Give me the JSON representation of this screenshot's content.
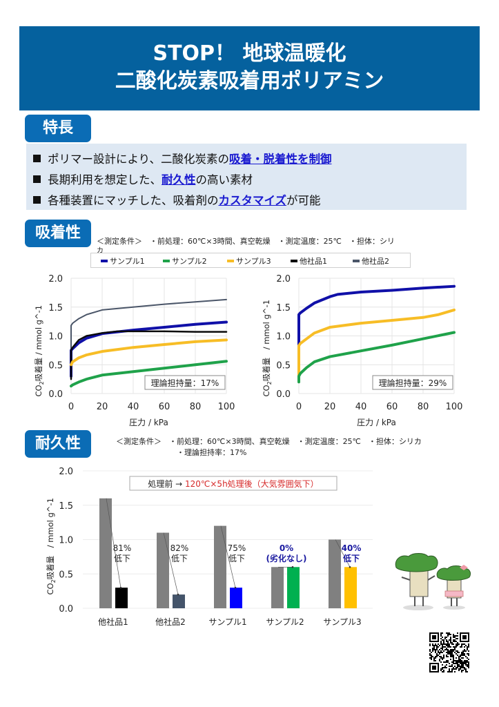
{
  "header": {
    "line1": "STOP！ 地球温暖化",
    "line2": "二酸化炭素吸着用ポリアミン"
  },
  "features": {
    "heading": "特長",
    "items": [
      {
        "before": "ポリマー設計により、二酸化炭素の",
        "highlight": "吸着・脱着性を制御",
        "after": ""
      },
      {
        "before": "長期利用を想定した、",
        "highlight": "耐久性",
        "after": "の高い素材"
      },
      {
        "before": "各種装置にマッチした、吸着剤の",
        "highlight": "カスタマイズ",
        "after": "が可能"
      }
    ]
  },
  "adsorption": {
    "heading": "吸着性",
    "conditions_line1": "＜測定条件＞　・前処理：60℃×3時間、真空乾燥　・測定温度：25℃　・担体：シリ",
    "conditions_line2": "カ",
    "legend": [
      {
        "label": "サンプル1",
        "color": "#1010a8"
      },
      {
        "label": "サンプル2",
        "color": "#1fa24a"
      },
      {
        "label": "サンプル3",
        "color": "#f7bd26"
      },
      {
        "label": "他社品1",
        "color": "#0a0a0a"
      },
      {
        "label": "他社品2",
        "color": "#4a5568"
      }
    ]
  },
  "durability": {
    "heading": "耐久性",
    "conditions_line1": "＜測定条件＞　・前処理：60℃×3時間、真空乾燥　・測定温度：25℃　・担体：シリカ",
    "conditions_line2": "・理論担持率：17%"
  },
  "chart_data": [
    {
      "type": "line",
      "title": "",
      "xlabel": "圧力 / kPa",
      "ylabel": "CO2吸着量 / mmol g^-1",
      "ylabel_main": "CO",
      "ylabel_sub": "2",
      "ylabel_rest": "吸着量 / mmol g^-1",
      "xlim": [
        0,
        100
      ],
      "ylim": [
        0,
        2.0
      ],
      "xticks": [
        "0",
        "20",
        "40",
        "60",
        "80",
        "100"
      ],
      "yticks": [
        "0.0",
        "0.5",
        "1.0",
        "1.5",
        "2.0"
      ],
      "grid": true,
      "annotation": "理論担持量：17%",
      "series": [
        {
          "name": "他社品2",
          "color": "#4a5568",
          "width": 2,
          "x": [
            0,
            0,
            1,
            5,
            10,
            20,
            40,
            60,
            80,
            100
          ],
          "y": [
            0.3,
            1.18,
            1.22,
            1.3,
            1.37,
            1.45,
            1.5,
            1.55,
            1.59,
            1.63
          ]
        },
        {
          "name": "サンプル1",
          "color": "#1010a8",
          "width": 4,
          "x": [
            0,
            0,
            1,
            5,
            10,
            20,
            40,
            60,
            80,
            100
          ],
          "y": [
            0.3,
            0.75,
            0.78,
            0.88,
            0.96,
            1.04,
            1.1,
            1.15,
            1.2,
            1.24
          ]
        },
        {
          "name": "他社品1",
          "color": "#0a0a0a",
          "width": 2.5,
          "x": [
            0,
            0,
            1,
            5,
            10,
            20,
            30,
            40,
            60,
            80,
            100
          ],
          "y": [
            0.25,
            0.75,
            0.8,
            0.93,
            1.0,
            1.05,
            1.08,
            1.08,
            1.08,
            1.07,
            1.07
          ]
        },
        {
          "name": "サンプル3",
          "color": "#f7bd26",
          "width": 4,
          "x": [
            0,
            1,
            5,
            10,
            20,
            40,
            60,
            80,
            100
          ],
          "y": [
            0.5,
            0.55,
            0.62,
            0.67,
            0.73,
            0.8,
            0.85,
            0.9,
            0.93
          ]
        },
        {
          "name": "サンプル2",
          "color": "#1fa24a",
          "width": 4,
          "x": [
            0,
            1,
            5,
            10,
            20,
            40,
            60,
            80,
            100
          ],
          "y": [
            0.13,
            0.15,
            0.2,
            0.25,
            0.32,
            0.38,
            0.44,
            0.5,
            0.56
          ]
        }
      ]
    },
    {
      "type": "line",
      "title": "",
      "xlabel": "圧力 / kPa",
      "ylabel": "CO2吸着量　/ mmol g^-1",
      "ylabel_main": "CO",
      "ylabel_sub": "2",
      "ylabel_rest": "吸着量　/ mmol g^-1",
      "xlim": [
        0,
        100
      ],
      "ylim": [
        0,
        2.0
      ],
      "xticks": [
        "0",
        "20",
        "40",
        "60",
        "80",
        "100"
      ],
      "yticks": [
        "0.0",
        "0.5",
        "1.0",
        "1.5",
        "2.0"
      ],
      "grid": true,
      "annotation": "理論担持量：29%",
      "series": [
        {
          "name": "サンプル1",
          "color": "#1010a8",
          "width": 4,
          "x": [
            0,
            0,
            1,
            5,
            10,
            20,
            25,
            40,
            60,
            80,
            100
          ],
          "y": [
            0.85,
            1.37,
            1.4,
            1.48,
            1.57,
            1.68,
            1.72,
            1.76,
            1.79,
            1.83,
            1.86
          ]
        },
        {
          "name": "サンプル3",
          "color": "#f7bd26",
          "width": 4,
          "x": [
            0,
            0,
            1,
            5,
            10,
            20,
            40,
            60,
            80,
            90,
            100
          ],
          "y": [
            0.25,
            0.83,
            0.87,
            0.95,
            1.05,
            1.15,
            1.22,
            1.27,
            1.32,
            1.37,
            1.45
          ]
        },
        {
          "name": "サンプル2",
          "color": "#1fa24a",
          "width": 4,
          "x": [
            0,
            0,
            1,
            5,
            10,
            20,
            40,
            60,
            80,
            100
          ],
          "y": [
            0.2,
            0.3,
            0.35,
            0.45,
            0.55,
            0.64,
            0.74,
            0.84,
            0.95,
            1.06
          ]
        }
      ]
    },
    {
      "type": "bar",
      "title": "",
      "xlabel": "",
      "ylabel": "CO2吸着量　/ mmol g^-1",
      "ylabel_main": "CO",
      "ylabel_sub": "2",
      "ylabel_rest": "吸着量　/ mmol g^-1",
      "ylim": [
        0,
        2.0
      ],
      "yticks": [
        "0.0",
        "0.5",
        "1.0",
        "1.5",
        "2.0"
      ],
      "grid": true,
      "legend_note_before": "処理前 → ",
      "legend_note_after": "120℃×5h処理後（大気雰囲気下）",
      "categories": [
        "他社品1",
        "他社品2",
        "サンプル1",
        "サンプル2",
        "サンプル3"
      ],
      "series": [
        {
          "name": "処理前",
          "color": "#808080",
          "values": [
            1.6,
            1.1,
            1.2,
            0.6,
            1.0
          ]
        },
        {
          "name": "120℃×5h処理後（大気雰囲気下）",
          "colors": [
            "#000000",
            "#44546a",
            "#0000ff",
            "#00b050",
            "#ffc000"
          ],
          "values": [
            0.3,
            0.2,
            0.3,
            0.6,
            0.6
          ]
        }
      ],
      "annotations": [
        {
          "line1": "81%",
          "line2": "低下",
          "emphasis": false
        },
        {
          "line1": "82%",
          "line2": "低下",
          "emphasis": false
        },
        {
          "line1": "75%",
          "line2": "低下",
          "emphasis": false
        },
        {
          "line1": "0%",
          "line2": "(劣化なし)",
          "emphasis": true
        },
        {
          "line1": "40%",
          "line2": "低下",
          "emphasis": true
        }
      ],
      "annotation_color_emphasis": "#1a1aa0",
      "annotation_color_normal": "#222222"
    }
  ],
  "colors": {
    "banner": "#05619e",
    "badge": "#0b6cb5",
    "highlight": "#1a1ad0",
    "note_red": "#d62828",
    "feature_bg": "#dee8f3"
  }
}
